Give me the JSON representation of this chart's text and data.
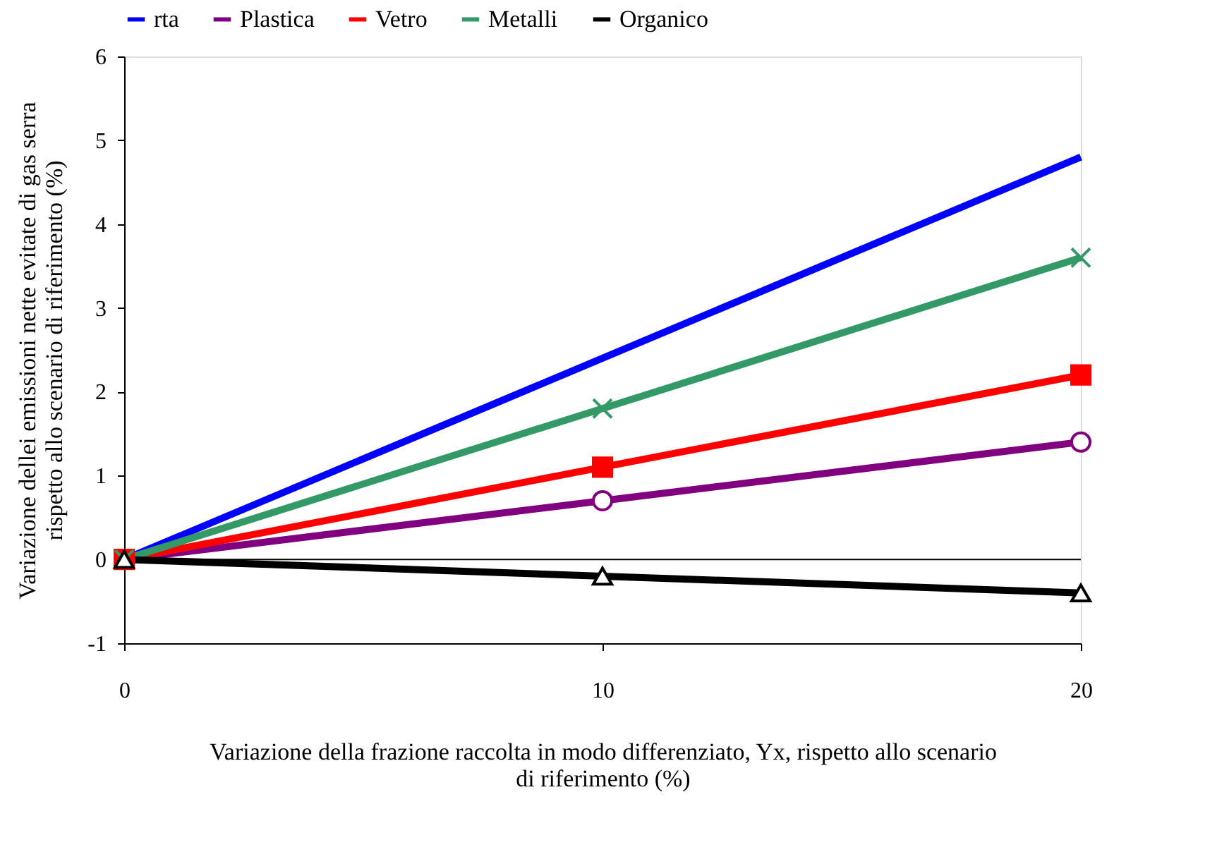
{
  "chart_data": {
    "type": "line",
    "xlabel": "Variazione della frazione raccolta in modo differenziato, Yx, rispetto allo scenario\ndi riferimento (%)",
    "ylabel": "Variazione dellei emissioni nette evitate di gas serra\nrispetto allo scenario di riferimento  (%)",
    "x": [
      0,
      10,
      20
    ],
    "series": [
      {
        "name": "rta",
        "color": "#0000ff",
        "marker": "none",
        "values": [
          0,
          2.4,
          4.8
        ]
      },
      {
        "name": "Plastica",
        "color": "#800080",
        "marker": "circle",
        "values": [
          0,
          0.7,
          1.4
        ]
      },
      {
        "name": "Vetro",
        "color": "#ff0000",
        "marker": "square",
        "values": [
          0,
          1.1,
          2.2
        ]
      },
      {
        "name": "Metalli",
        "color": "#339966",
        "marker": "cross",
        "values": [
          0,
          1.8,
          3.6
        ]
      },
      {
        "name": "Organico",
        "color": "#000000",
        "marker": "triangle",
        "values": [
          0,
          -0.2,
          -0.4
        ]
      }
    ],
    "xlim": [
      0,
      20
    ],
    "xticks": [
      0,
      10,
      20
    ],
    "ylim": [
      -1,
      6
    ],
    "yticks": [
      -1,
      0,
      1,
      2,
      3,
      4,
      5,
      6
    ],
    "ref_lines": [
      {
        "axis": "y",
        "value": 0
      }
    ],
    "grid": false,
    "legend": "top",
    "line_style": "solid"
  }
}
